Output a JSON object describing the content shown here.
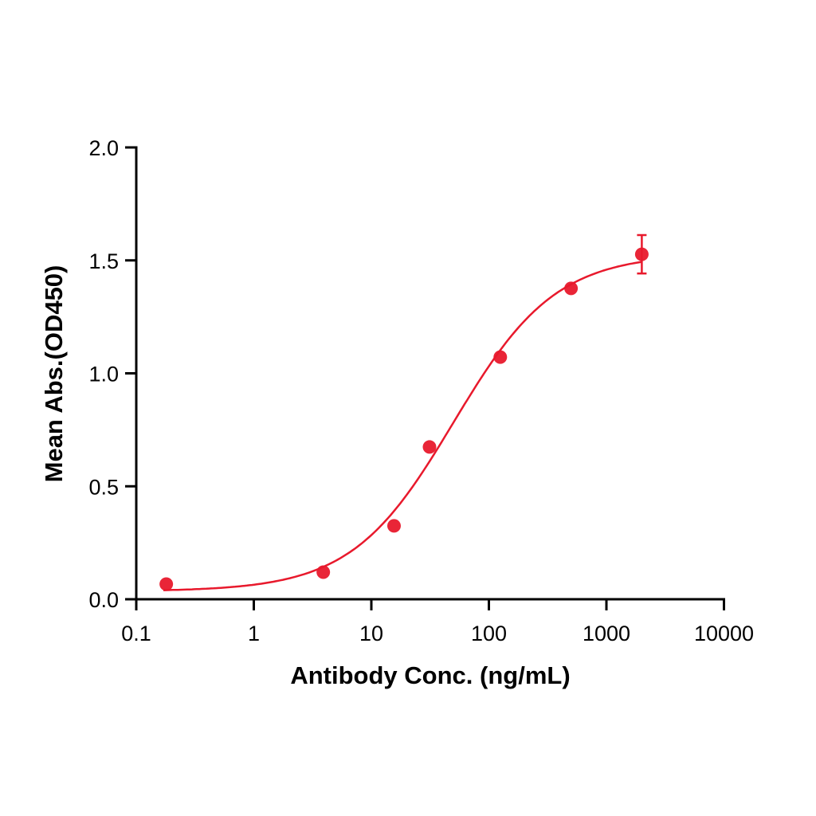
{
  "chart_data": {
    "type": "scatter",
    "title": "",
    "xlabel": "Antibody Conc. (ng/mL)",
    "ylabel": "Mean Abs.(OD450)",
    "xscale": "log",
    "xlim": [
      0.1,
      10000
    ],
    "ylim": [
      0,
      2.0
    ],
    "xticks": [
      "0.1",
      "1",
      "10",
      "100",
      "1000",
      "10000"
    ],
    "yticks": [
      "0.0",
      "0.5",
      "1.0",
      "1.5",
      "2.0"
    ],
    "grid": false,
    "legend": null,
    "series": [
      {
        "name": "Mean Abs.",
        "color": "#e8192c",
        "x": [
          0.18,
          3.9,
          15.6,
          31.25,
          125,
          500,
          2000
        ],
        "y": [
          0.067,
          0.12,
          0.325,
          0.674,
          1.072,
          1.376,
          1.527
        ],
        "error": [
          0,
          0,
          0,
          0,
          0,
          0,
          0.085
        ],
        "fit": {
          "type": "4PL sigmoid",
          "bottom": 0.035,
          "top": 1.53,
          "ec50": 50,
          "hill": 1.0
        }
      }
    ]
  }
}
